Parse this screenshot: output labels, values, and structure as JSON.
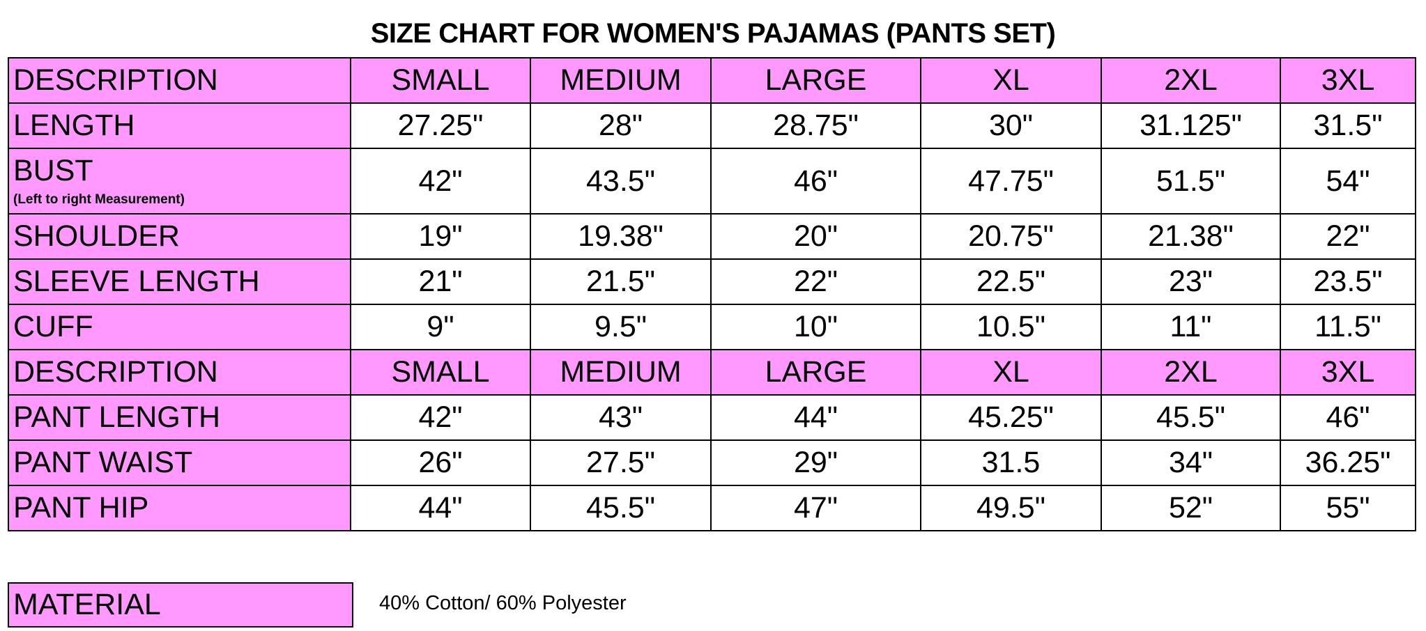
{
  "title": "SIZE CHART FOR WOMEN'S PAJAMAS (PANTS SET)",
  "accent_color": "#ff99ff",
  "top_header": [
    "DESCRIPTION",
    "SMALL",
    "MEDIUM",
    "LARGE",
    "XL",
    "2XL",
    "3XL"
  ],
  "top_rows": [
    {
      "label": "LENGTH",
      "values": [
        "27.25\"",
        "28\"",
        "28.75\"",
        "30\"",
        "31.125\"",
        "31.5\""
      ]
    },
    {
      "label": "BUST",
      "note": "(Left to right Measurement)",
      "values": [
        "42\"",
        "43.5\"",
        "46\"",
        "47.75\"",
        "51.5\"",
        "54\""
      ]
    },
    {
      "label": "SHOULDER",
      "values": [
        "19\"",
        "19.38\"",
        "20\"",
        "20.75\"",
        "21.38\"",
        "22\""
      ]
    },
    {
      "label": "SLEEVE LENGTH",
      "values": [
        "21\"",
        "21.5\"",
        "22\"",
        "22.5\"",
        "23\"",
        "23.5\""
      ]
    },
    {
      "label": "CUFF",
      "values": [
        "9\"",
        "9.5\"",
        "10\"",
        "10.5\"",
        "11\"",
        "11.5\""
      ]
    }
  ],
  "bottom_header": [
    "DESCRIPTION",
    "SMALL",
    "MEDIUM",
    "LARGE",
    "XL",
    "2XL",
    "3XL"
  ],
  "bottom_rows": [
    {
      "label": "PANT LENGTH",
      "values": [
        "42\"",
        "43\"",
        "44\"",
        "45.25\"",
        "45.5\"",
        "46\""
      ]
    },
    {
      "label": "PANT WAIST",
      "values": [
        "26\"",
        "27.5\"",
        "29\"",
        "31.5",
        "34\"",
        "36.25\""
      ]
    },
    {
      "label": "PANT HIP",
      "values": [
        "44\"",
        "45.5\"",
        "47\"",
        "49.5\"",
        "52\"",
        "55\""
      ]
    }
  ],
  "material": {
    "label": "MATERIAL",
    "value": "40% Cotton/ 60% Polyester"
  }
}
